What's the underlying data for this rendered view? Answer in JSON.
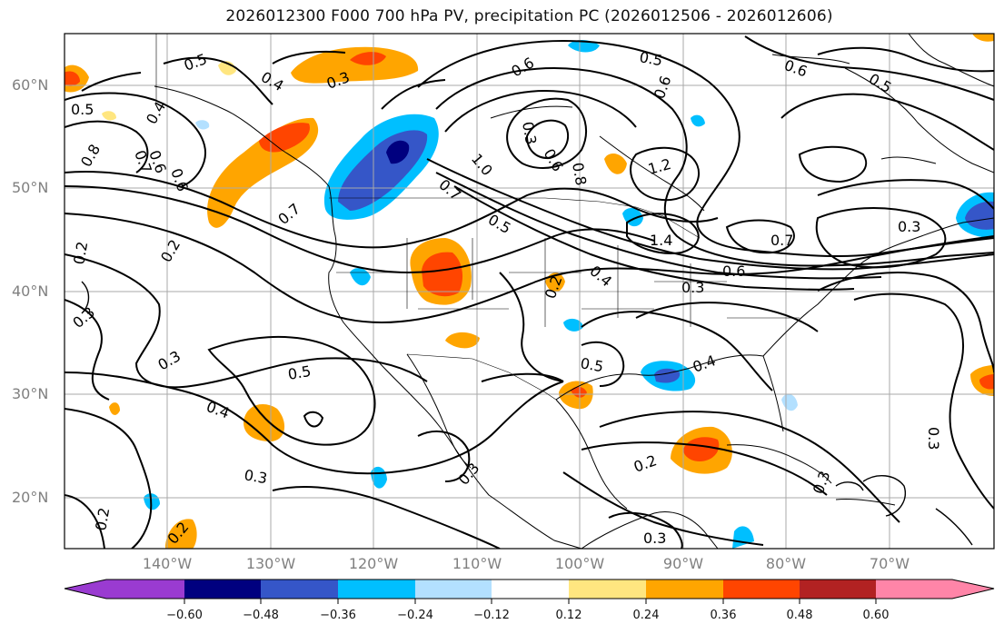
{
  "title": "2026012300 F000 700 hPa PV, precipitation PC (2026012506 - 2026012606)",
  "latitude_labels": [
    "60°N",
    "50°N",
    "40°N",
    "30°N",
    "20°N"
  ],
  "longitude_labels": [
    "140°W",
    "130°W",
    "120°W",
    "110°W",
    "100°W",
    "90°W",
    "80°W",
    "70°W"
  ],
  "contour_labels": [
    "0.5",
    "0.4",
    "0.3",
    "0.5",
    "0.4",
    "0.8",
    "0.7",
    "0.6",
    "0.6",
    "0.7",
    "0.2",
    "0.2",
    "0.3",
    "0.3",
    "0.4",
    "0.5",
    "0.7",
    "1.0",
    "0.5",
    "0.3",
    "0.6",
    "0.8",
    "0.6",
    "0.5",
    "0.6",
    "0.6",
    "1.2",
    "1.4",
    "0.7",
    "0.5",
    "0.4",
    "0.6",
    "0.3",
    "0.3",
    "0.2",
    "0.4",
    "0.5",
    "0.3",
    "0.2",
    "0.3",
    "0.2",
    "0.2",
    "0.3",
    "0.3",
    "0.3"
  ],
  "colorbar": {
    "ticks": [
      "−0.60",
      "−0.48",
      "−0.36",
      "−0.24",
      "−0.12",
      "0.12",
      "0.24",
      "0.36",
      "0.48",
      "0.60"
    ],
    "colors": [
      "#9a3bd1",
      "#00007f",
      "#3556c8",
      "#00bfff",
      "#b3e0ff",
      "#ffffff",
      "#ffe680",
      "#ffa500",
      "#ff4500",
      "#b22222",
      "#ff85a8"
    ]
  },
  "fill_colors": {
    "neg_light": "#b3e0ff",
    "neg_mid": "#00bfff",
    "neg_strong": "#3556c8",
    "neg_max": "#00007f",
    "pos_light": "#ffe680",
    "pos_mid": "#ffa500",
    "pos_strong": "#ff4500",
    "pos_max": "#b22222"
  }
}
